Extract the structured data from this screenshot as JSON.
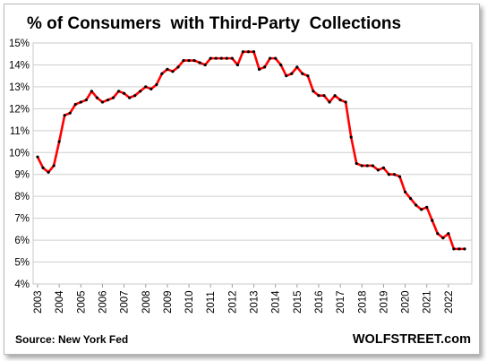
{
  "chart_data": {
    "type": "line",
    "title": "% of Consumers  with Third-Party  Collections",
    "source": "Source: New York Fed",
    "brand": "WOLFSTREET.com",
    "xlabel": "",
    "ylabel": "",
    "y_ticks": [
      "4%",
      "5%",
      "6%",
      "7%",
      "8%",
      "9%",
      "10%",
      "11%",
      "12%",
      "13%",
      "14%",
      "15%"
    ],
    "x_ticks": [
      "2003",
      "2004",
      "2005",
      "2006",
      "2007",
      "2008",
      "2009",
      "2010",
      "2011",
      "2012",
      "2013",
      "2014",
      "2015",
      "2016",
      "2017",
      "2018",
      "2019",
      "2020",
      "2021",
      "2022"
    ],
    "ylim": [
      4,
      15
    ],
    "grid": true,
    "line_color": "#ff0000",
    "marker_color": "#000000",
    "series": [
      {
        "x": [
          2003.0,
          2003.25,
          2003.5,
          2003.75,
          2004.0,
          2004.25,
          2004.5,
          2004.75,
          2005.0,
          2005.25,
          2005.5,
          2005.75,
          2006.0,
          2006.25,
          2006.5,
          2006.75,
          2007.0,
          2007.25,
          2007.5,
          2007.75,
          2008.0,
          2008.25,
          2008.5,
          2008.75,
          2009.0,
          2009.25,
          2009.5,
          2009.75,
          2010.0,
          2010.25,
          2010.5,
          2010.75,
          2011.0,
          2011.25,
          2011.5,
          2011.75,
          2012.0,
          2012.25,
          2012.5,
          2012.75,
          2013.0,
          2013.25,
          2013.5,
          2013.75,
          2014.0,
          2014.25,
          2014.5,
          2014.75,
          2015.0,
          2015.25,
          2015.5,
          2015.75,
          2016.0,
          2016.25,
          2016.5,
          2016.75,
          2017.0,
          2017.25,
          2017.5,
          2017.75,
          2018.0,
          2018.25,
          2018.5,
          2018.75,
          2019.0,
          2019.25,
          2019.5,
          2019.75,
          2020.0,
          2020.25,
          2020.5,
          2020.75,
          2021.0,
          2021.25,
          2021.5,
          2021.75,
          2022.0,
          2022.25,
          2022.5,
          2022.75
        ],
        "values": [
          9.8,
          9.3,
          9.1,
          9.4,
          10.5,
          11.7,
          11.8,
          12.2,
          12.3,
          12.4,
          12.8,
          12.5,
          12.3,
          12.4,
          12.5,
          12.8,
          12.7,
          12.5,
          12.6,
          12.8,
          13.0,
          12.9,
          13.1,
          13.6,
          13.8,
          13.7,
          13.9,
          14.2,
          14.2,
          14.2,
          14.1,
          14.0,
          14.3,
          14.3,
          14.3,
          14.3,
          14.3,
          14.0,
          14.6,
          14.6,
          14.6,
          13.8,
          13.9,
          14.3,
          14.3,
          14.0,
          13.5,
          13.6,
          13.9,
          13.6,
          13.5,
          12.8,
          12.6,
          12.6,
          12.3,
          12.6,
          12.4,
          12.3,
          10.7,
          9.5,
          9.4,
          9.4,
          9.4,
          9.2,
          9.3,
          9.0,
          9.0,
          8.9,
          8.2,
          7.9,
          7.6,
          7.4,
          7.5,
          6.9,
          6.3,
          6.1,
          6.3,
          5.6,
          5.6,
          5.6
        ]
      }
    ]
  }
}
